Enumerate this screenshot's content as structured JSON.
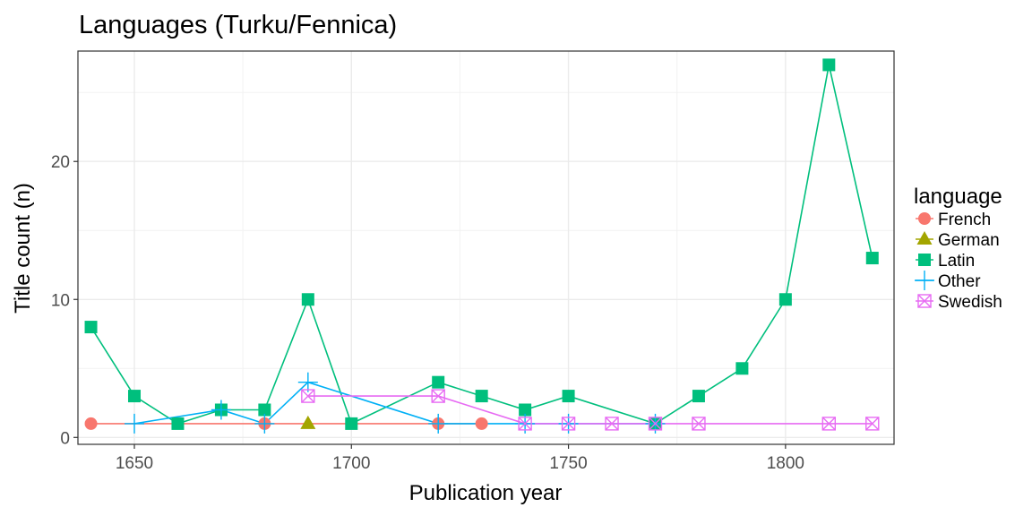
{
  "chart_data": {
    "type": "line",
    "title": "Languages (Turku/Fennica)",
    "xlabel": "Publication year",
    "ylabel": "Title count (n)",
    "xlim": [
      1637,
      1825
    ],
    "ylim": [
      -0.5,
      28
    ],
    "x_ticks": [
      1650,
      1700,
      1750,
      1800
    ],
    "y_ticks": [
      0,
      10,
      20
    ],
    "grid": true,
    "legend": {
      "title": "language",
      "position": "right"
    },
    "series": [
      {
        "name": "French",
        "color": "#F8766D",
        "marker": "circle",
        "x": [
          1640,
          1680,
          1720,
          1730
        ],
        "y": [
          1,
          1,
          1,
          1
        ]
      },
      {
        "name": "German",
        "color": "#A3A500",
        "marker": "triangle",
        "x": [
          1690
        ],
        "y": [
          1
        ]
      },
      {
        "name": "Latin",
        "color": "#00BF7D",
        "marker": "square",
        "x": [
          1640,
          1650,
          1660,
          1670,
          1680,
          1690,
          1700,
          1720,
          1730,
          1740,
          1750,
          1770,
          1780,
          1790,
          1800,
          1810,
          1820
        ],
        "y": [
          8,
          3,
          1,
          2,
          2,
          10,
          1,
          4,
          3,
          2,
          3,
          1,
          3,
          5,
          10,
          27,
          13
        ]
      },
      {
        "name": "Other",
        "color": "#00B0F6",
        "marker": "plus",
        "x": [
          1650,
          1670,
          1680,
          1690,
          1720,
          1740,
          1750,
          1770
        ],
        "y": [
          1,
          2,
          1,
          4,
          1,
          1,
          1,
          1
        ]
      },
      {
        "name": "Swedish",
        "color": "#E76BF3",
        "marker": "square-cross",
        "x": [
          1690,
          1720,
          1740,
          1750,
          1760,
          1770,
          1780,
          1810,
          1820
        ],
        "y": [
          3,
          3,
          1,
          1,
          1,
          1,
          1,
          1,
          1
        ]
      }
    ]
  }
}
